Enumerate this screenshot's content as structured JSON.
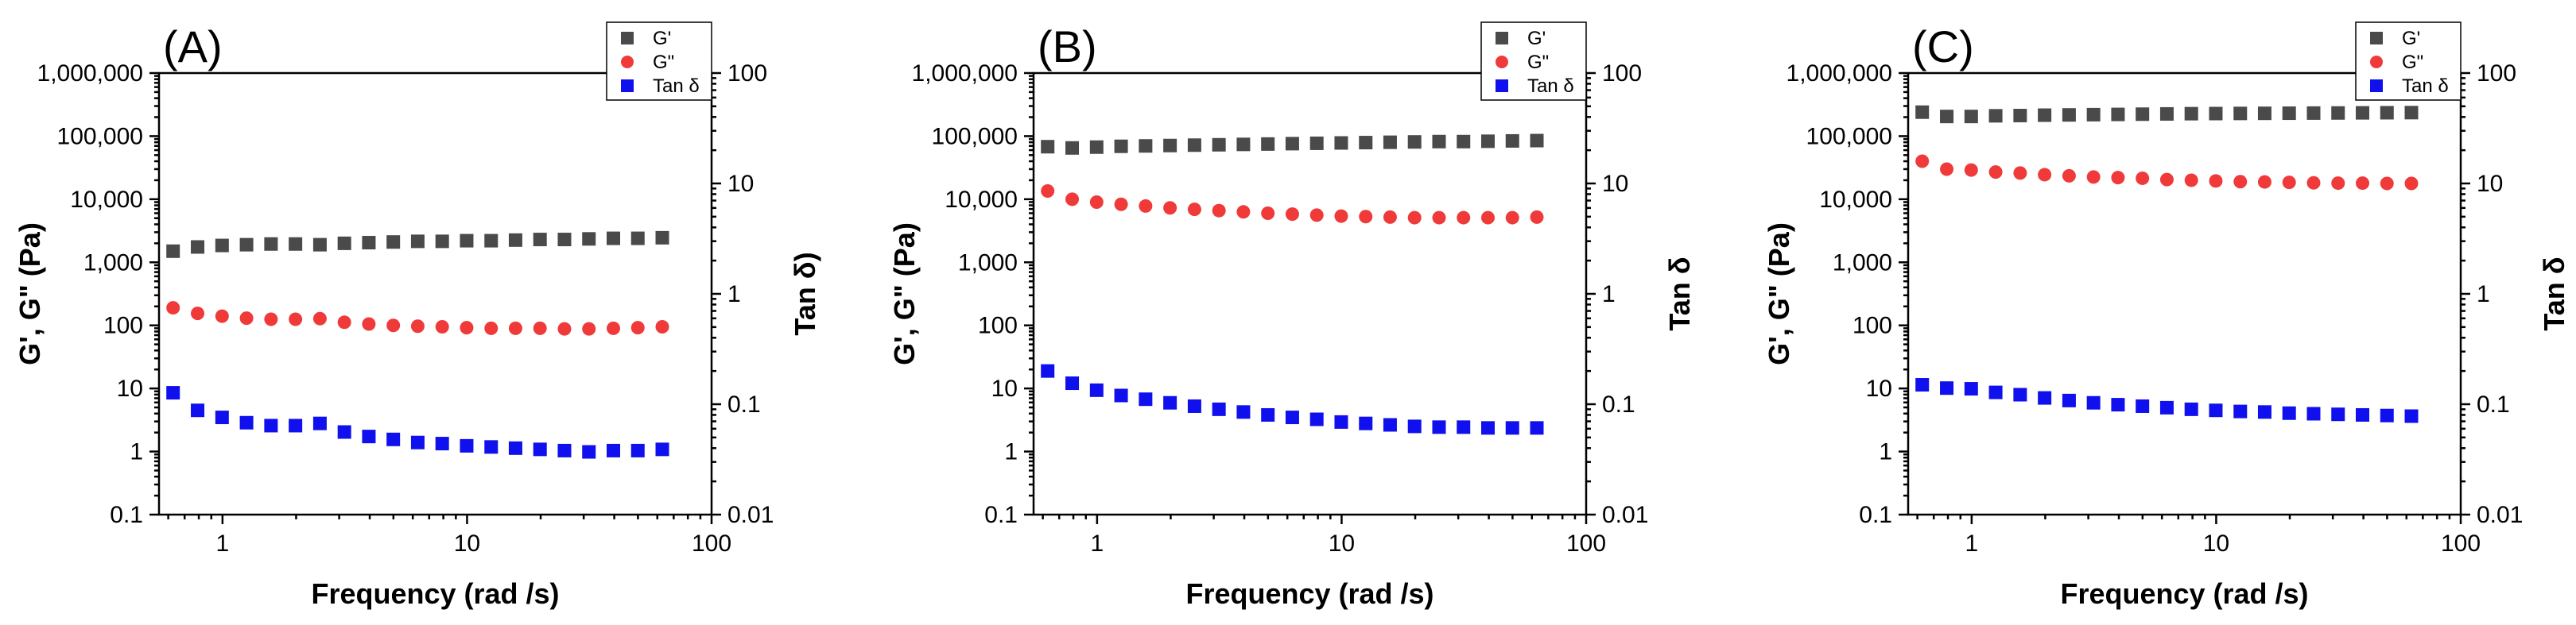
{
  "figure": {
    "legend_labels": [
      "G'",
      "G\"",
      "Tan δ"
    ],
    "series_colors": {
      "G'": "#4a4a4a",
      "G\"": "#f03a3a",
      "Tan δ": "#1010ee"
    }
  },
  "chart_data": [
    {
      "type": "scatter",
      "panel_label": "(A)",
      "xlabel": "Frequency (rad /s)",
      "ylabel": "G', G\" (Pa)",
      "y2label": "Tan δ)",
      "xscale": "log",
      "yscale": "log",
      "y2scale": "log",
      "xlim": [
        0.55,
        100
      ],
      "ylim": [
        0.1,
        1000000
      ],
      "y2lim": [
        0.01,
        100
      ],
      "xticks": [
        "1",
        "10",
        "100"
      ],
      "yticks": [
        "0.1",
        "1",
        "10",
        "100",
        "1,000",
        "10,000",
        "100,000",
        "1,000,000"
      ],
      "y2ticks": [
        "0.01",
        "0.1",
        "1",
        "10",
        "100"
      ],
      "x": [
        0.628,
        0.791,
        0.996,
        1.254,
        1.579,
        1.988,
        2.503,
        3.151,
        3.967,
        4.994,
        6.287,
        7.915,
        9.965,
        12.55,
        15.79,
        19.88,
        25.03,
        31.51,
        39.67,
        49.94,
        62.87
      ],
      "series": [
        {
          "name": "G'",
          "axis": "left",
          "marker": "square",
          "values": [
            1500,
            1750,
            1850,
            1900,
            1950,
            1950,
            1900,
            2000,
            2050,
            2100,
            2150,
            2150,
            2200,
            2200,
            2250,
            2300,
            2300,
            2350,
            2400,
            2400,
            2450
          ]
        },
        {
          "name": "G\"",
          "axis": "left",
          "marker": "circle",
          "values": [
            190,
            155,
            140,
            130,
            125,
            125,
            128,
            112,
            105,
            100,
            97,
            95,
            92,
            90,
            90,
            90,
            88,
            88,
            90,
            92,
            95
          ]
        },
        {
          "name": "Tan δ",
          "axis": "right",
          "marker": "square",
          "values": [
            0.127,
            0.088,
            0.076,
            0.068,
            0.064,
            0.064,
            0.067,
            0.056,
            0.051,
            0.048,
            0.045,
            0.044,
            0.042,
            0.041,
            0.04,
            0.039,
            0.038,
            0.037,
            0.038,
            0.038,
            0.039
          ]
        }
      ]
    },
    {
      "type": "scatter",
      "panel_label": "(B)",
      "xlabel": "Frequency (rad /s)",
      "ylabel": "G', G\" (Pa)",
      "y2label": "Tan δ",
      "xscale": "log",
      "yscale": "log",
      "y2scale": "log",
      "xlim": [
        0.55,
        100
      ],
      "ylim": [
        0.1,
        1000000
      ],
      "y2lim": [
        0.01,
        100
      ],
      "xticks": [
        "1",
        "10",
        "100"
      ],
      "yticks": [
        "0.1",
        "1",
        "10",
        "100",
        "1,000",
        "10,000",
        "100,000",
        "1,000,000"
      ],
      "y2ticks": [
        "0.01",
        "0.1",
        "1",
        "10",
        "100"
      ],
      "x": [
        0.628,
        0.791,
        0.996,
        1.254,
        1.579,
        1.988,
        2.503,
        3.151,
        3.967,
        4.994,
        6.287,
        7.915,
        9.965,
        12.55,
        15.79,
        19.88,
        25.03,
        31.51,
        39.67,
        49.94,
        62.87
      ],
      "series": [
        {
          "name": "G'",
          "axis": "left",
          "marker": "square",
          "values": [
            68000,
            65000,
            67000,
            69000,
            70000,
            71000,
            72000,
            73000,
            74000,
            75000,
            76000,
            77000,
            78000,
            79000,
            80000,
            81000,
            82000,
            82000,
            83000,
            84000,
            85000
          ]
        },
        {
          "name": "G\"",
          "axis": "left",
          "marker": "circle",
          "values": [
            13500,
            10000,
            9000,
            8300,
            7800,
            7300,
            6900,
            6600,
            6300,
            6000,
            5800,
            5600,
            5400,
            5300,
            5200,
            5100,
            5100,
            5100,
            5100,
            5100,
            5200
          ]
        },
        {
          "name": "Tan δ",
          "axis": "right",
          "marker": "square",
          "values": [
            0.2,
            0.155,
            0.134,
            0.12,
            0.111,
            0.103,
            0.096,
            0.09,
            0.085,
            0.08,
            0.076,
            0.073,
            0.069,
            0.067,
            0.065,
            0.063,
            0.062,
            0.062,
            0.061,
            0.061,
            0.061
          ]
        }
      ]
    },
    {
      "type": "scatter",
      "panel_label": "(C)",
      "xlabel": "Frequency (rad /s)",
      "ylabel": "G', G\" (Pa)",
      "y2label": "Tan δ",
      "xscale": "log",
      "yscale": "log",
      "y2scale": "log",
      "xlim": [
        0.55,
        100
      ],
      "ylim": [
        0.1,
        1000000
      ],
      "y2lim": [
        0.01,
        100
      ],
      "xticks": [
        "1",
        "10",
        "100"
      ],
      "yticks": [
        "0.1",
        "1",
        "10",
        "100",
        "1,000",
        "10,000",
        "100,000",
        "1,000,000"
      ],
      "y2ticks": [
        "0.01",
        "0.1",
        "1",
        "10",
        "100"
      ],
      "x": [
        0.628,
        0.791,
        0.996,
        1.254,
        1.579,
        1.988,
        2.503,
        3.151,
        3.967,
        4.994,
        6.287,
        7.915,
        9.965,
        12.55,
        15.79,
        19.88,
        25.03,
        31.51,
        39.67,
        49.94,
        62.87
      ],
      "series": [
        {
          "name": "G'",
          "axis": "left",
          "marker": "square",
          "values": [
            240000,
            205000,
            205000,
            210000,
            212000,
            215000,
            217000,
            219000,
            221000,
            223000,
            225000,
            227000,
            228000,
            229000,
            230000,
            231000,
            232000,
            233000,
            234000,
            235000,
            236000
          ]
        },
        {
          "name": "G\"",
          "axis": "left",
          "marker": "circle",
          "values": [
            40000,
            30000,
            29000,
            27000,
            26000,
            24500,
            23500,
            22500,
            22000,
            21500,
            20500,
            20000,
            19500,
            19000,
            18800,
            18500,
            18200,
            18000,
            18000,
            17800,
            17800
          ]
        },
        {
          "name": "Tan δ",
          "axis": "right",
          "marker": "square",
          "values": [
            0.15,
            0.14,
            0.138,
            0.128,
            0.122,
            0.114,
            0.108,
            0.103,
            0.099,
            0.096,
            0.093,
            0.09,
            0.088,
            0.086,
            0.085,
            0.083,
            0.082,
            0.081,
            0.08,
            0.079,
            0.078
          ]
        }
      ]
    }
  ]
}
